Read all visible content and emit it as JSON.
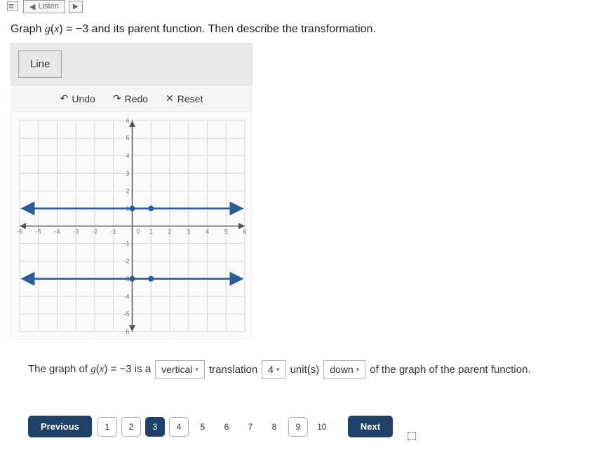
{
  "topbar": {
    "listen_label": "Listen"
  },
  "question": {
    "prefix": "Graph ",
    "expr_lhs": "g",
    "expr_paren_open": "(",
    "expr_var": "x",
    "expr_paren_close": ")",
    "expr_eq": " = −3",
    "suffix": " and its parent function. Then describe the transformation."
  },
  "tools": {
    "line_label": "Line",
    "undo_label": "Undo",
    "redo_label": "Redo",
    "reset_label": "Reset"
  },
  "graph": {
    "xlim": [
      -6,
      6
    ],
    "ylim": [
      -6,
      6
    ],
    "tick_step": 1,
    "x_ticks": [
      -6,
      -5,
      -4,
      -3,
      -2,
      -1,
      1,
      2,
      3,
      4,
      5,
      6
    ],
    "y_ticks": [
      -6,
      -5,
      -4,
      -3,
      -2,
      -1,
      1,
      2,
      3,
      4,
      5,
      6
    ],
    "grid_color": "#d8d8d8",
    "axis_color": "#555555",
    "tick_label_color": "#777777",
    "tick_fontsize": 9,
    "background_color": "#fafafa",
    "lines": [
      {
        "y": 1,
        "color": "#2a5c9a",
        "stroke_width": 2.5,
        "points": [
          {
            "x": 0,
            "y": 1
          },
          {
            "x": 1,
            "y": 1
          }
        ],
        "point_color": "#2a5c9a",
        "point_radius": 4,
        "arrows": true
      },
      {
        "y": -3,
        "color": "#2a5c9a",
        "stroke_width": 2.5,
        "points": [
          {
            "x": 0,
            "y": -3
          },
          {
            "x": 1,
            "y": -3
          }
        ],
        "point_color": "#2a5c9a",
        "point_radius": 4,
        "arrows": true
      }
    ]
  },
  "answer": {
    "prefix": "The graph of ",
    "expr_lhs": "g",
    "expr_paren_open": "(",
    "expr_var": "x",
    "expr_paren_close": ")",
    "expr_eq": " = −3",
    "mid1": " is a",
    "sel1": "vertical",
    "mid2": "translation",
    "sel2": "4",
    "mid3": "unit(s)",
    "sel3": "down",
    "suffix": "of the graph of the parent function."
  },
  "nav": {
    "prev_label": "Previous",
    "next_label": "Next",
    "pages": [
      "1",
      "2",
      "3",
      "4",
      "5",
      "6",
      "7",
      "8",
      "9",
      "10"
    ],
    "active": 3,
    "bordered": [
      1,
      2,
      3,
      4,
      9
    ]
  },
  "colors": {
    "primary": "#1d4168",
    "panel_bg": "#e8e8e8"
  }
}
